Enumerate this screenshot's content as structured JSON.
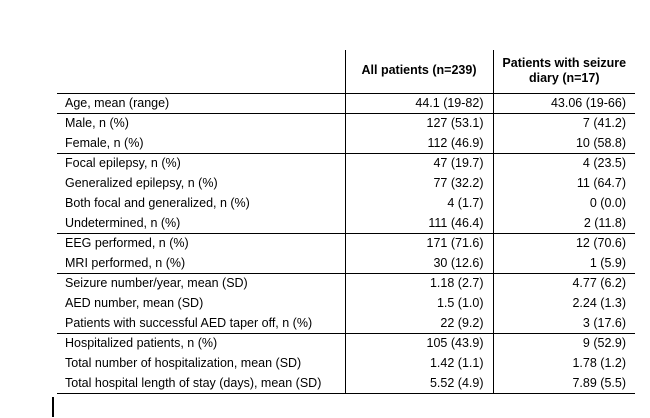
{
  "colors": {
    "background": "#ffffff",
    "text": "#000000",
    "table_border": "#000000"
  },
  "table": {
    "header": {
      "label_column": "",
      "all_patients": "All patients (n=239)",
      "seizure_diary": "Patients with seizure diary (n=17)"
    },
    "rows": [
      {
        "label": "Age, mean (range)",
        "all_patients": "44.1 (19-82)",
        "seizure_diary": "43.06 (19-66)"
      },
      {
        "label": "Male, n (%)",
        "all_patients": "127 (53.1)",
        "seizure_diary": "7 (41.2)"
      },
      {
        "label": "Female, n (%)",
        "all_patients": "112 (46.9)",
        "seizure_diary": "10 (58.8)"
      },
      {
        "label": "Focal epilepsy, n (%)",
        "all_patients": "47 (19.7)",
        "seizure_diary": "4 (23.5)"
      },
      {
        "label": "Generalized epilepsy, n (%)",
        "all_patients": "77 (32.2)",
        "seizure_diary": "11 (64.7)"
      },
      {
        "label": "Both focal and generalized, n (%)",
        "all_patients": "4 (1.7)",
        "seizure_diary": "0 (0.0)"
      },
      {
        "label": "Undetermined, n (%)",
        "all_patients": "111 (46.4)",
        "seizure_diary": "2 (11.8)"
      },
      {
        "label": "EEG performed, n (%)",
        "all_patients": "171 (71.6)",
        "seizure_diary": "12 (70.6)"
      },
      {
        "label": "MRI performed, n (%)",
        "all_patients": "30 (12.6)",
        "seizure_diary": "1 (5.9)"
      },
      {
        "label": "Seizure number/year, mean (SD)",
        "all_patients": "1.18 (2.7)",
        "seizure_diary": "4.77 (6.2)"
      },
      {
        "label": "AED number, mean (SD)",
        "all_patients": "1.5 (1.0)",
        "seizure_diary": "2.24 (1.3)"
      },
      {
        "label": "Patients with successful AED taper off, n (%)",
        "all_patients": "22 (9.2)",
        "seizure_diary": "3 (17.6)"
      },
      {
        "label": "Hospitalized patients, n (%)",
        "all_patients": "105 (43.9)",
        "seizure_diary": "9 (52.9)"
      },
      {
        "label": "Total number of hospitalization, mean (SD)",
        "all_patients": "1.42 (1.1)",
        "seizure_diary": "1.78 (1.2)"
      },
      {
        "label": "Total hospital length of stay (days), mean (SD)",
        "all_patients": "5.52 (4.9)",
        "seizure_diary": "7.89 (5.5)"
      }
    ]
  }
}
